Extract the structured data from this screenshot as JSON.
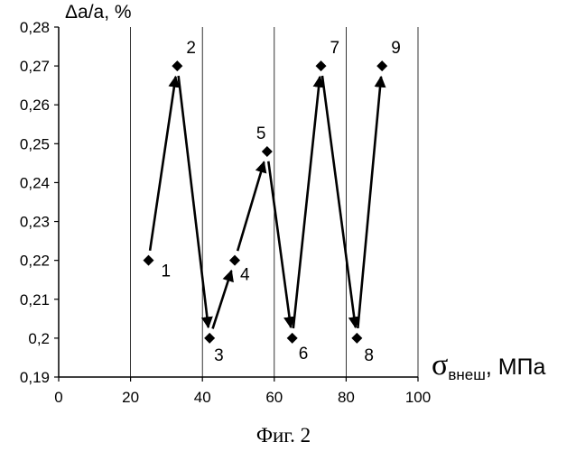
{
  "chart_data": {
    "type": "scatter",
    "ylabel": "Δa/a, %",
    "xlabel_main": "σ",
    "xlabel_sub": "внеш",
    "xlabel_unit": ", МПа",
    "caption": "Фиг. 2",
    "xlim": [
      0,
      100
    ],
    "ylim": [
      0.19,
      0.28
    ],
    "x_ticks": [
      0,
      20,
      40,
      60,
      80,
      100
    ],
    "x_tick_labels": [
      "0",
      "20",
      "40",
      "60",
      "80",
      "100"
    ],
    "y_ticks": [
      0.19,
      0.2,
      0.21,
      0.22,
      0.23,
      0.24,
      0.25,
      0.26,
      0.27,
      0.28
    ],
    "y_tick_labels": [
      "0,19",
      "0,2",
      "0,21",
      "0,22",
      "0,23",
      "0,24",
      "0,25",
      "0,26",
      "0,27",
      "0,28"
    ],
    "grid": "vertical",
    "marker": "diamond",
    "points": [
      {
        "label": "1",
        "x": 25,
        "y": 0.22
      },
      {
        "label": "2",
        "x": 33,
        "y": 0.27
      },
      {
        "label": "3",
        "x": 42,
        "y": 0.2
      },
      {
        "label": "4",
        "x": 49,
        "y": 0.22
      },
      {
        "label": "5",
        "x": 58,
        "y": 0.248
      },
      {
        "label": "6",
        "x": 65,
        "y": 0.2
      },
      {
        "label": "7",
        "x": 73,
        "y": 0.27
      },
      {
        "label": "8",
        "x": 83,
        "y": 0.2
      },
      {
        "label": "9",
        "x": 90,
        "y": 0.27
      }
    ],
    "arrows_sequence": true
  }
}
